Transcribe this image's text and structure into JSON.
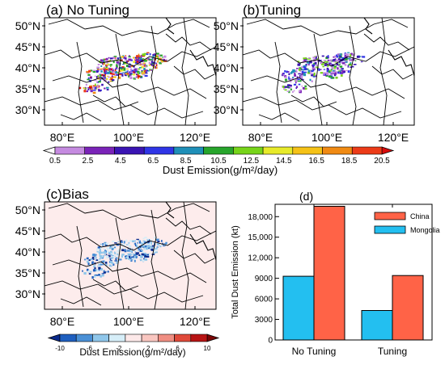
{
  "panels": {
    "a": {
      "title": "(a) No Tuning"
    },
    "b": {
      "title": "(b)Tuning"
    },
    "c": {
      "title": "(c)Bias"
    },
    "d": {
      "title": "(d)"
    }
  },
  "map_axes": {
    "lat_labels": [
      "50°N",
      "45°N",
      "40°N",
      "35°N",
      "30°N"
    ],
    "lon_labels": [
      "80°E",
      "100°E",
      "120°E"
    ]
  },
  "dust_colorbar": {
    "label": "Dust Emission(g/m²/day)",
    "ticks": [
      "0.5",
      "2.5",
      "4.5",
      "6.5",
      "8.5",
      "10.5",
      "12.5",
      "14.5",
      "16.5",
      "18.5",
      "20.5"
    ],
    "colors": [
      "#ffffff",
      "#c58be0",
      "#7a23b8",
      "#3a14b3",
      "#2f35e6",
      "#1f8fb8",
      "#27a52c",
      "#77d41a",
      "#e7ea2a",
      "#f5c217",
      "#f08a13",
      "#ec3b18",
      "#d80c0c"
    ]
  },
  "bias_colorbar": {
    "label": "Dust Emission(g/m²/day)",
    "ticks": [
      "-10",
      "-6",
      "-2",
      "2",
      "6",
      "10"
    ],
    "colors": [
      "#0a2a8c",
      "#1e5fbf",
      "#4a90d6",
      "#8fc6ea",
      "#d6eef8",
      "#fde9e9",
      "#f9c6c0",
      "#f08e82",
      "#e04a3a",
      "#b81414",
      "#7a0606"
    ]
  },
  "chart_data": {
    "type": "bar",
    "categories": [
      "No Tuning",
      "Tuning"
    ],
    "series": [
      {
        "name": "Mongolia",
        "values": [
          9300,
          4300
        ],
        "color": "#23bff0"
      },
      {
        "name": "China",
        "values": [
          19500,
          9400
        ],
        "color": "#ff6347"
      }
    ],
    "ylabel": "Total Dust Emission (kt)",
    "xlabel": "",
    "ylim": [
      0,
      19800
    ],
    "yticks": [
      0,
      3000,
      6000,
      9000,
      12000,
      15000,
      18000
    ],
    "ytick_labels": [
      "0",
      "3000",
      "6000",
      "9000",
      "12,000",
      "15,000",
      "18,000"
    ],
    "legend_position": "top-right"
  }
}
